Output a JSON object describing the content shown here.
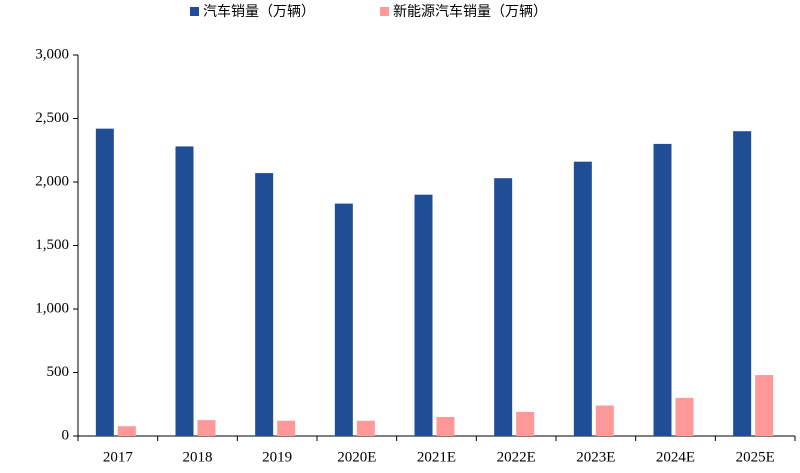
{
  "chart_data": {
    "type": "bar",
    "categories": [
      "2017",
      "2018",
      "2019",
      "2020E",
      "2021E",
      "2022E",
      "2023E",
      "2024E",
      "2025E"
    ],
    "series": [
      {
        "name": "汽车销量（万辆）",
        "color": "#1f4e96",
        "values": [
          2420,
          2280,
          2070,
          1830,
          1900,
          2030,
          2160,
          2300,
          2400
        ]
      },
      {
        "name": "新能源汽车销量（万辆）",
        "color": "#ff9999",
        "values": [
          77,
          125,
          120,
          120,
          150,
          190,
          240,
          300,
          480
        ]
      }
    ],
    "ylim": [
      0,
      3000
    ],
    "yticks": [
      0,
      500,
      {
        "value": 1000,
        "label": "1,000"
      },
      {
        "value": 1500,
        "label": "1,500"
      },
      {
        "value": 2000,
        "label": "2,000"
      },
      {
        "value": 2500,
        "label": "2,500"
      },
      {
        "value": 3000,
        "label": "3,000"
      }
    ],
    "legend": "top"
  }
}
